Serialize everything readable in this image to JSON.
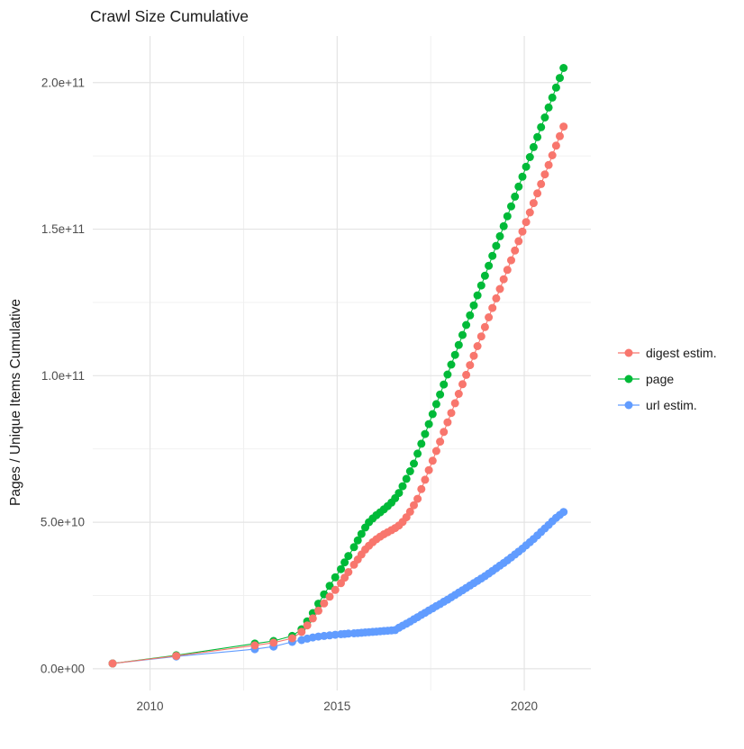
{
  "title": "Crawl Size Cumulative",
  "axes": {
    "y_title": "Pages / Unique Items Cumulative",
    "y_ticks": [
      {
        "label": "0.0e+00",
        "value": 0
      },
      {
        "label": "5.0e+10",
        "value": 50
      },
      {
        "label": "1.0e+11",
        "value": 100
      },
      {
        "label": "1.5e+11",
        "value": 150
      },
      {
        "label": "2.0e+11",
        "value": 200
      }
    ],
    "y_minor": [
      25,
      75,
      125,
      175
    ],
    "x_ticks": [
      {
        "label": "2010",
        "value": 2010
      },
      {
        "label": "2015",
        "value": 2015
      },
      {
        "label": "2020",
        "value": 2020
      }
    ],
    "x_minor": [
      2012.5,
      2017.5
    ]
  },
  "legend": [
    {
      "label": "digest estim.",
      "color": "#F8766D"
    },
    {
      "label": "page",
      "color": "#00BA38"
    },
    {
      "label": "url estim.",
      "color": "#619CFF"
    }
  ],
  "colors": {
    "background": "#ffffff",
    "grid_major": "#e4e4e4",
    "grid_minor": "#efefef",
    "axis_text": "#4d4d4d",
    "title_text": "#1a1a1a"
  },
  "chart_data": {
    "type": "scatter",
    "title": "Crawl Size Cumulative",
    "xlabel": "",
    "ylabel": "Pages / Unique Items Cumulative",
    "x_unit": "year",
    "y_unit": "count (values listed in units of 1e9 items)",
    "xlim": [
      2008.47,
      2021.78
    ],
    "ylim_e9": [
      -7.4,
      215.9
    ],
    "grid": true,
    "marker": "point-with-line",
    "legend_position": "right-middle",
    "series": [
      {
        "name": "digest estim.",
        "color": "#F8766D",
        "points": [
          [
            2009.0,
            1.8
          ],
          [
            2010.7,
            4.4
          ],
          [
            2012.8,
            8.0
          ],
          [
            2013.3,
            8.9
          ],
          [
            2013.8,
            10.4
          ],
          [
            2014.05,
            12.6
          ],
          [
            2014.2,
            14.8
          ],
          [
            2014.35,
            17.2
          ],
          [
            2014.5,
            19.8
          ],
          [
            2014.65,
            22.3
          ],
          [
            2014.8,
            24.6
          ],
          [
            2014.95,
            26.9
          ],
          [
            2015.1,
            29.2
          ],
          [
            2015.2,
            31.1
          ],
          [
            2015.3,
            33.0
          ],
          [
            2015.45,
            35.5
          ],
          [
            2015.55,
            37.3
          ],
          [
            2015.65,
            39.0
          ],
          [
            2015.75,
            40.7
          ],
          [
            2015.85,
            42.0
          ],
          [
            2015.95,
            43.2
          ],
          [
            2016.05,
            44.2
          ],
          [
            2016.15,
            45.1
          ],
          [
            2016.25,
            45.9
          ],
          [
            2016.35,
            46.6
          ],
          [
            2016.45,
            47.3
          ],
          [
            2016.55,
            48.0
          ],
          [
            2016.65,
            48.9
          ],
          [
            2016.75,
            50.1
          ],
          [
            2016.85,
            51.7
          ],
          [
            2016.95,
            53.6
          ],
          [
            2017.05,
            55.8
          ],
          [
            2017.15,
            58.0
          ],
          [
            2017.25,
            61.3
          ],
          [
            2017.35,
            64.5
          ],
          [
            2017.45,
            67.8
          ],
          [
            2017.55,
            71.0
          ],
          [
            2017.65,
            74.3
          ],
          [
            2017.75,
            77.5
          ],
          [
            2017.85,
            80.8
          ],
          [
            2017.95,
            84.1
          ],
          [
            2018.05,
            87.3
          ],
          [
            2018.15,
            90.6
          ],
          [
            2018.25,
            93.8
          ],
          [
            2018.35,
            97.1
          ],
          [
            2018.45,
            100.3
          ],
          [
            2018.55,
            103.6
          ],
          [
            2018.65,
            106.8
          ],
          [
            2018.75,
            110.1
          ],
          [
            2018.85,
            113.4
          ],
          [
            2018.95,
            116.6
          ],
          [
            2019.05,
            119.9
          ],
          [
            2019.15,
            123.1
          ],
          [
            2019.25,
            126.4
          ],
          [
            2019.35,
            129.6
          ],
          [
            2019.45,
            132.9
          ],
          [
            2019.55,
            136.1
          ],
          [
            2019.65,
            139.4
          ],
          [
            2019.75,
            142.7
          ],
          [
            2019.85,
            145.9
          ],
          [
            2019.95,
            149.2
          ],
          [
            2020.05,
            152.4
          ],
          [
            2020.15,
            155.7
          ],
          [
            2020.25,
            158.9
          ],
          [
            2020.35,
            162.2
          ],
          [
            2020.45,
            165.4
          ],
          [
            2020.55,
            168.7
          ],
          [
            2020.65,
            171.9
          ],
          [
            2020.75,
            175.2
          ],
          [
            2020.85,
            178.5
          ],
          [
            2020.95,
            181.7
          ],
          [
            2021.05,
            185.0
          ]
        ]
      },
      {
        "name": "page",
        "color": "#00BA38",
        "points": [
          [
            2009.0,
            1.8
          ],
          [
            2010.7,
            4.6
          ],
          [
            2012.8,
            8.6
          ],
          [
            2013.3,
            9.5
          ],
          [
            2013.8,
            11.2
          ],
          [
            2014.05,
            13.5
          ],
          [
            2014.2,
            16.2
          ],
          [
            2014.35,
            19.0
          ],
          [
            2014.5,
            22.2
          ],
          [
            2014.65,
            25.4
          ],
          [
            2014.8,
            28.3
          ],
          [
            2014.95,
            31.2
          ],
          [
            2015.1,
            34.0
          ],
          [
            2015.2,
            36.3
          ],
          [
            2015.3,
            38.5
          ],
          [
            2015.45,
            41.5
          ],
          [
            2015.55,
            43.8
          ],
          [
            2015.65,
            46.0
          ],
          [
            2015.75,
            48.2
          ],
          [
            2015.85,
            50.0
          ],
          [
            2015.95,
            51.3
          ],
          [
            2016.05,
            52.4
          ],
          [
            2016.15,
            53.4
          ],
          [
            2016.25,
            54.4
          ],
          [
            2016.35,
            55.5
          ],
          [
            2016.45,
            56.7
          ],
          [
            2016.55,
            58.2
          ],
          [
            2016.65,
            60.0
          ],
          [
            2016.75,
            62.3
          ],
          [
            2016.85,
            64.8
          ],
          [
            2016.95,
            67.4
          ],
          [
            2017.05,
            70.0
          ],
          [
            2017.15,
            73.4
          ],
          [
            2017.25,
            76.8
          ],
          [
            2017.35,
            80.1
          ],
          [
            2017.45,
            83.5
          ],
          [
            2017.55,
            86.9
          ],
          [
            2017.65,
            90.3
          ],
          [
            2017.75,
            93.6
          ],
          [
            2017.85,
            97.0
          ],
          [
            2017.95,
            100.4
          ],
          [
            2018.05,
            103.8
          ],
          [
            2018.15,
            107.1
          ],
          [
            2018.25,
            110.5
          ],
          [
            2018.35,
            113.9
          ],
          [
            2018.45,
            117.3
          ],
          [
            2018.55,
            120.6
          ],
          [
            2018.65,
            124.0
          ],
          [
            2018.75,
            127.4
          ],
          [
            2018.85,
            130.8
          ],
          [
            2018.95,
            134.1
          ],
          [
            2019.05,
            137.5
          ],
          [
            2019.15,
            140.9
          ],
          [
            2019.25,
            144.3
          ],
          [
            2019.35,
            147.6
          ],
          [
            2019.45,
            151.0
          ],
          [
            2019.55,
            154.4
          ],
          [
            2019.65,
            157.8
          ],
          [
            2019.75,
            161.1
          ],
          [
            2019.85,
            164.5
          ],
          [
            2019.95,
            167.9
          ],
          [
            2020.05,
            171.3
          ],
          [
            2020.15,
            174.6
          ],
          [
            2020.25,
            178.0
          ],
          [
            2020.35,
            181.4
          ],
          [
            2020.45,
            184.8
          ],
          [
            2020.55,
            188.1
          ],
          [
            2020.65,
            191.5
          ],
          [
            2020.75,
            194.9
          ],
          [
            2020.85,
            198.3
          ],
          [
            2020.95,
            201.6
          ],
          [
            2021.05,
            205.0
          ]
        ]
      },
      {
        "name": "url estim.",
        "color": "#619CFF",
        "points": [
          [
            2009.0,
            1.8
          ],
          [
            2010.7,
            4.2
          ],
          [
            2012.8,
            6.7
          ],
          [
            2013.3,
            7.6
          ],
          [
            2013.8,
            9.2
          ],
          [
            2014.05,
            9.8
          ],
          [
            2014.2,
            10.3
          ],
          [
            2014.35,
            10.7
          ],
          [
            2014.5,
            11.0
          ],
          [
            2014.65,
            11.2
          ],
          [
            2014.8,
            11.4
          ],
          [
            2014.95,
            11.6
          ],
          [
            2015.1,
            11.8
          ],
          [
            2015.2,
            11.9
          ],
          [
            2015.3,
            12.0
          ],
          [
            2015.45,
            12.1
          ],
          [
            2015.55,
            12.2
          ],
          [
            2015.65,
            12.3
          ],
          [
            2015.75,
            12.4
          ],
          [
            2015.85,
            12.5
          ],
          [
            2015.95,
            12.6
          ],
          [
            2016.05,
            12.7
          ],
          [
            2016.15,
            12.8
          ],
          [
            2016.25,
            12.9
          ],
          [
            2016.35,
            13.0
          ],
          [
            2016.45,
            13.1
          ],
          [
            2016.55,
            13.2
          ],
          [
            2016.65,
            14.0
          ],
          [
            2016.75,
            14.7
          ],
          [
            2016.85,
            15.4
          ],
          [
            2016.95,
            16.1
          ],
          [
            2017.05,
            16.9
          ],
          [
            2017.15,
            17.6
          ],
          [
            2017.25,
            18.4
          ],
          [
            2017.35,
            19.1
          ],
          [
            2017.45,
            19.9
          ],
          [
            2017.55,
            20.6
          ],
          [
            2017.65,
            21.4
          ],
          [
            2017.75,
            22.1
          ],
          [
            2017.85,
            22.9
          ],
          [
            2017.95,
            23.6
          ],
          [
            2018.05,
            24.4
          ],
          [
            2018.15,
            25.2
          ],
          [
            2018.25,
            26.0
          ],
          [
            2018.35,
            26.8
          ],
          [
            2018.45,
            27.6
          ],
          [
            2018.55,
            28.4
          ],
          [
            2018.65,
            29.2
          ],
          [
            2018.75,
            30.0
          ],
          [
            2018.85,
            30.8
          ],
          [
            2018.95,
            31.6
          ],
          [
            2019.05,
            32.5
          ],
          [
            2019.15,
            33.4
          ],
          [
            2019.25,
            34.3
          ],
          [
            2019.35,
            35.2
          ],
          [
            2019.45,
            36.1
          ],
          [
            2019.55,
            37.0
          ],
          [
            2019.65,
            38.0
          ],
          [
            2019.75,
            39.0
          ],
          [
            2019.85,
            40.0
          ],
          [
            2019.95,
            41.0
          ],
          [
            2020.05,
            42.1
          ],
          [
            2020.15,
            43.2
          ],
          [
            2020.25,
            44.3
          ],
          [
            2020.35,
            45.5
          ],
          [
            2020.45,
            46.7
          ],
          [
            2020.55,
            47.9
          ],
          [
            2020.65,
            49.1
          ],
          [
            2020.75,
            50.3
          ],
          [
            2020.85,
            51.5
          ],
          [
            2020.95,
            52.5
          ],
          [
            2021.05,
            53.5
          ]
        ]
      }
    ]
  }
}
